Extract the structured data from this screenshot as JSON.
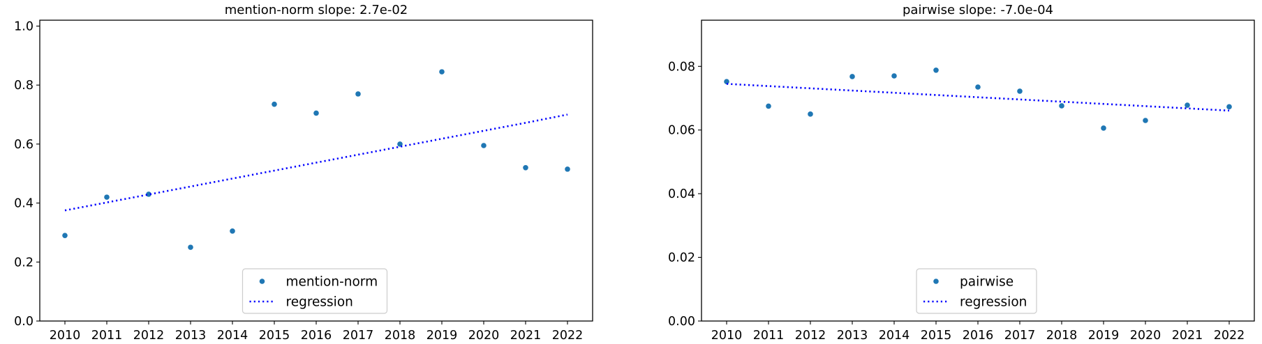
{
  "chart_data": [
    {
      "type": "scatter",
      "title": "mention-norm slope: 2.7e-02",
      "xlabel": "",
      "ylabel": "",
      "x": [
        2010,
        2011,
        2012,
        2013,
        2014,
        2015,
        2016,
        2017,
        2018,
        2019,
        2020,
        2021,
        2022
      ],
      "xlim": [
        2009.4,
        2022.6
      ],
      "ylim": [
        0.0,
        1.02
      ],
      "xticks": [
        "2010",
        "2011",
        "2012",
        "2013",
        "2014",
        "2015",
        "2016",
        "2017",
        "2018",
        "2019",
        "2020",
        "2021",
        "2022"
      ],
      "yticks": [
        0.0,
        0.2,
        0.4,
        0.6,
        0.8,
        1.0
      ],
      "ytick_labels": [
        "0.0",
        "0.2",
        "0.4",
        "0.6",
        "0.8",
        "1.0"
      ],
      "series": [
        {
          "name": "mention-norm",
          "kind": "points",
          "color": "#1f77b4",
          "values": [
            0.29,
            0.42,
            0.43,
            0.25,
            0.305,
            0.735,
            0.705,
            0.77,
            0.6,
            0.845,
            0.595,
            0.52,
            0.515
          ]
        },
        {
          "name": "regression",
          "kind": "dotted-line",
          "color": "#0000ff",
          "values": [
            0.375,
            0.402,
            0.429,
            0.456,
            0.483,
            0.51,
            0.537,
            0.564,
            0.591,
            0.618,
            0.645,
            0.672,
            0.7
          ]
        }
      ],
      "legend": "lower-center",
      "grid": false
    },
    {
      "type": "scatter",
      "title": "pairwise slope: -7.0e-04",
      "xlabel": "",
      "ylabel": "",
      "x": [
        2010,
        2011,
        2012,
        2013,
        2014,
        2015,
        2016,
        2017,
        2018,
        2019,
        2020,
        2021,
        2022
      ],
      "xlim": [
        2009.4,
        2022.6
      ],
      "ylim": [
        0.0,
        0.0945
      ],
      "xticks": [
        "2010",
        "2011",
        "2012",
        "2013",
        "2014",
        "2015",
        "2016",
        "2017",
        "2018",
        "2019",
        "2020",
        "2021",
        "2022"
      ],
      "yticks": [
        0.0,
        0.02,
        0.04,
        0.06,
        0.08
      ],
      "ytick_labels": [
        "0.00",
        "0.02",
        "0.04",
        "0.06",
        "0.08"
      ],
      "series": [
        {
          "name": "pairwise",
          "kind": "points",
          "color": "#1f77b4",
          "values": [
            0.0752,
            0.0675,
            0.065,
            0.0768,
            0.077,
            0.0788,
            0.0735,
            0.0722,
            0.0676,
            0.0606,
            0.063,
            0.0678,
            0.0673
          ]
        },
        {
          "name": "regression",
          "kind": "dotted-line",
          "color": "#0000ff",
          "values": [
            0.0745,
            0.0738,
            0.0731,
            0.0724,
            0.0717,
            0.071,
            0.0703,
            0.0696,
            0.0689,
            0.0682,
            0.0675,
            0.0668,
            0.0661
          ]
        }
      ],
      "legend": "lower-center",
      "grid": false
    }
  ]
}
